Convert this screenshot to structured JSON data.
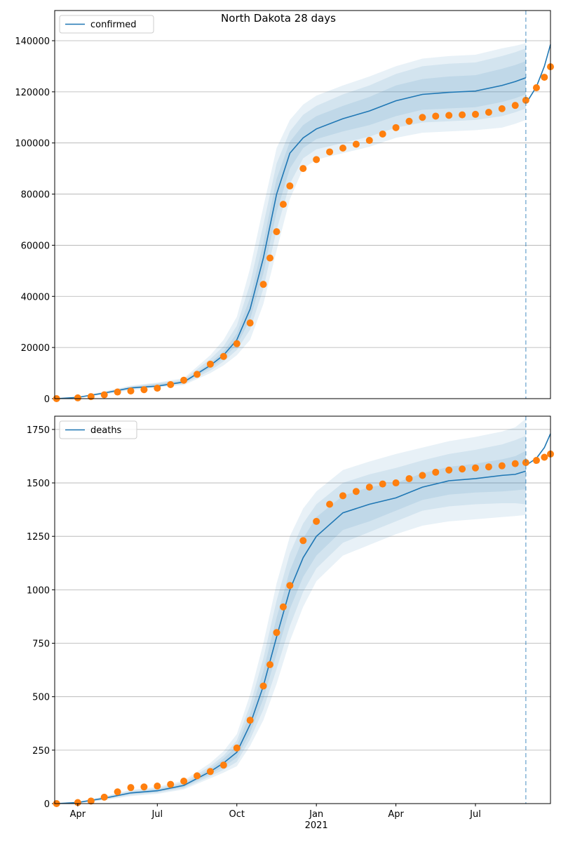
{
  "title": "North Dakota 28 days",
  "chart_data": [
    {
      "type": "line",
      "x": [
        3.2,
        4,
        5,
        6,
        7,
        8,
        9,
        9.5,
        10,
        10.5,
        11,
        11.5,
        12,
        12.5,
        13,
        14,
        15,
        16,
        17,
        18,
        19,
        20,
        20.5,
        20.9,
        20.95,
        21.0,
        21.3,
        21.6,
        21.83
      ],
      "series": [
        {
          "name": "confirmed",
          "color": "#1f77b4",
          "values": [
            0,
            500,
            2200,
            4200,
            4900,
            6500,
            13000,
            17000,
            23000,
            35000,
            55000,
            80000,
            96000,
            102000,
            105500,
            109500,
            112500,
            116500,
            119000,
            119800,
            120300,
            122500,
            124000,
            125500,
            null,
            117000,
            122000,
            130000,
            138500
          ]
        }
      ],
      "bands": [
        {
          "color": "#1f77b4",
          "lower": [
            0,
            350,
            1600,
            3300,
            4400,
            5300,
            10000,
            13000,
            17000,
            23000,
            37000,
            58000,
            78000,
            90000,
            93500,
            96000,
            98500,
            102000,
            104000,
            104500,
            105000,
            106000,
            107500,
            109000,
            null,
            null,
            null,
            null,
            null
          ],
          "upper": [
            0,
            650,
            2800,
            5100,
            6300,
            8000,
            17000,
            23000,
            32000,
            51000,
            75000,
            98000,
            109000,
            115000,
            118500,
            122500,
            126000,
            130000,
            133000,
            134000,
            134500,
            137000,
            138000,
            139000,
            null,
            null,
            null,
            null,
            null
          ]
        },
        {
          "color": "#1f77b4",
          "lower": [
            0,
            400,
            1800,
            3600,
            4700,
            5700,
            11000,
            14500,
            19000,
            27000,
            43000,
            66000,
            84000,
            94000,
            97500,
            100000,
            102500,
            106000,
            108000,
            108500,
            109000,
            110500,
            112000,
            113500,
            null,
            null,
            null,
            null,
            null
          ],
          "upper": [
            0,
            600,
            2600,
            4800,
            6000,
            7500,
            15500,
            20500,
            28500,
            45000,
            68000,
            92000,
            104500,
            111000,
            114500,
            119000,
            122500,
            127000,
            130000,
            131000,
            131500,
            134000,
            135500,
            137000,
            null,
            null,
            null,
            null,
            null
          ]
        },
        {
          "color": "#1f77b4",
          "lower": [
            0,
            450,
            2000,
            3900,
            5000,
            6100,
            12000,
            15800,
            21000,
            31000,
            49000,
            73000,
            90000,
            98000,
            101500,
            104500,
            107000,
            110500,
            113000,
            113500,
            114000,
            116000,
            117500,
            119000,
            null,
            null,
            null,
            null,
            null
          ],
          "upper": [
            0,
            550,
            2400,
            4500,
            5700,
            7000,
            14000,
            18500,
            25500,
            39500,
            61000,
            86000,
            100500,
            107000,
            110500,
            114500,
            118000,
            122500,
            125000,
            126000,
            126500,
            129000,
            130500,
            132000,
            null,
            null,
            null,
            null,
            null
          ]
        }
      ],
      "observed": {
        "color": "#ff7f0e",
        "x": [
          3.2,
          4,
          4.5,
          5,
          5.5,
          6,
          6.5,
          7,
          7.5,
          8,
          8.5,
          9,
          9.5,
          10,
          10.5,
          11,
          11.25,
          11.5,
          11.75,
          12,
          12.5,
          13,
          13.5,
          14,
          14.5,
          15,
          15.5,
          16,
          16.5,
          17,
          17.5,
          18,
          18.5,
          19,
          19.5,
          20,
          20.5,
          20.9,
          21.3,
          21.6,
          21.83
        ],
        "values": [
          0,
          300,
          800,
          1500,
          2600,
          3000,
          3500,
          4100,
          5500,
          7200,
          9500,
          13500,
          16500,
          21500,
          29600,
          44700,
          55000,
          65300,
          76000,
          83200,
          90000,
          93500,
          96500,
          98000,
          99500,
          101000,
          103500,
          106000,
          108500,
          110000,
          110500,
          110800,
          111000,
          111200,
          112000,
          113400,
          114700,
          116700,
          121600,
          125700,
          129800
        ]
      },
      "vline": 20.9,
      "xlim": [
        3.13,
        21.83
      ],
      "ylim": [
        0,
        151800
      ],
      "yticks": [
        0,
        20000,
        40000,
        60000,
        80000,
        100000,
        120000,
        140000
      ],
      "grid": true,
      "legend": "upper left"
    },
    {
      "type": "line",
      "x": [
        3.2,
        4,
        5,
        6,
        7,
        8,
        9,
        9.5,
        10,
        10.5,
        11,
        11.5,
        12,
        12.5,
        13,
        14,
        15,
        16,
        17,
        18,
        19,
        20,
        20.5,
        20.9,
        20.95,
        21.0,
        21.3,
        21.6,
        21.83
      ],
      "series": [
        {
          "name": "deaths",
          "color": "#1f77b4",
          "values": [
            0,
            5,
            25,
            50,
            60,
            85,
            150,
            190,
            240,
            370,
            550,
            780,
            1000,
            1150,
            1250,
            1360,
            1400,
            1430,
            1480,
            1510,
            1520,
            1535,
            1540,
            1555,
            null,
            1590,
            1615,
            1665,
            1730
          ]
        }
      ],
      "bands": [
        {
          "color": "#1f77b4",
          "lower": [
            0,
            2,
            16,
            35,
            45,
            66,
            118,
            145,
            175,
            270,
            390,
            560,
            760,
            920,
            1040,
            1160,
            1210,
            1260,
            1300,
            1320,
            1330,
            1340,
            1345,
            1350,
            null,
            null,
            null,
            null,
            null
          ],
          "upper": [
            0,
            8,
            34,
            65,
            78,
            108,
            190,
            245,
            325,
            510,
            750,
            1030,
            1250,
            1380,
            1460,
            1560,
            1600,
            1635,
            1665,
            1695,
            1715,
            1740,
            1760,
            1800,
            null,
            null,
            null,
            null,
            null
          ]
        },
        {
          "color": "#1f77b4",
          "lower": [
            0,
            3,
            19,
            40,
            50,
            72,
            128,
            158,
            195,
            300,
            440,
            630,
            830,
            990,
            1100,
            1220,
            1270,
            1320,
            1370,
            1390,
            1400,
            1405,
            1405,
            1400,
            null,
            null,
            null,
            null,
            null
          ],
          "upper": [
            0,
            7,
            31,
            60,
            72,
            100,
            175,
            225,
            295,
            460,
            680,
            950,
            1170,
            1310,
            1400,
            1500,
            1540,
            1570,
            1605,
            1635,
            1655,
            1680,
            1700,
            1720,
            null,
            null,
            null,
            null,
            null
          ]
        },
        {
          "color": "#1f77b4",
          "lower": [
            0,
            4,
            22,
            45,
            55,
            78,
            138,
            172,
            215,
            330,
            490,
            700,
            910,
            1060,
            1160,
            1280,
            1320,
            1370,
            1420,
            1445,
            1455,
            1460,
            1465,
            1470,
            null,
            null,
            null,
            null,
            null
          ],
          "upper": [
            0,
            6,
            28,
            55,
            66,
            93,
            163,
            210,
            270,
            420,
            620,
            870,
            1090,
            1240,
            1340,
            1440,
            1480,
            1500,
            1545,
            1575,
            1590,
            1610,
            1625,
            1650,
            null,
            null,
            null,
            null,
            null
          ]
        }
      ],
      "observed": {
        "color": "#ff7f0e",
        "x": [
          3.2,
          4,
          4.5,
          5,
          5.5,
          6,
          6.5,
          7,
          7.5,
          8,
          8.5,
          9,
          9.5,
          10,
          10.5,
          11,
          11.25,
          11.5,
          11.75,
          12,
          12.5,
          13,
          13.5,
          14,
          14.5,
          15,
          15.5,
          16,
          16.5,
          17,
          17.5,
          18,
          18.5,
          19,
          19.5,
          20,
          20.5,
          20.9,
          21.3,
          21.6,
          21.83
        ],
        "values": [
          0,
          5,
          12,
          30,
          55,
          75,
          78,
          82,
          90,
          105,
          130,
          150,
          180,
          260,
          390,
          550,
          650,
          800,
          920,
          1020,
          1230,
          1320,
          1400,
          1440,
          1460,
          1480,
          1495,
          1500,
          1520,
          1535,
          1550,
          1560,
          1565,
          1570,
          1575,
          1580,
          1590,
          1595,
          1605,
          1620,
          1635
        ]
      },
      "vline": 20.9,
      "xlim": [
        3.13,
        21.83
      ],
      "ylim": [
        0,
        1812
      ],
      "yticks": [
        0,
        250,
        500,
        750,
        1000,
        1250,
        1500,
        1750
      ],
      "xticks": [
        {
          "value": 4,
          "label": "Apr"
        },
        {
          "value": 7,
          "label": "Jul"
        },
        {
          "value": 10,
          "label": "Oct"
        },
        {
          "value": 13,
          "label": "Jan"
        },
        {
          "value": 16,
          "label": "Apr"
        },
        {
          "value": 19,
          "label": "Jul"
        }
      ],
      "xticks_secondary": [
        {
          "value": 13,
          "label": "2021"
        }
      ],
      "grid": true,
      "legend": "upper left"
    }
  ]
}
